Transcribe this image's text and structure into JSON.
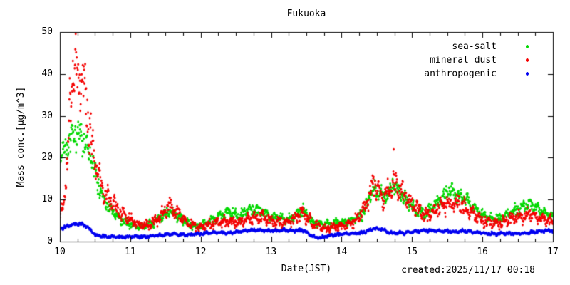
{
  "window": {
    "background": "#ffffff"
  },
  "chart_data": {
    "type": "scatter",
    "title": "Fukuoka",
    "xlabel": "Date(JST)",
    "ylabel": "Mass conc.[μg/m^3]",
    "created": "created:2025/11/17 00:18",
    "grid": false,
    "legend_position": "top-right-inside",
    "x_axis": {
      "min": 10,
      "max": 17,
      "ticks": [
        10,
        11,
        12,
        13,
        14,
        15,
        16,
        17
      ],
      "minor_step": 0.25
    },
    "y_axis": {
      "min": 0,
      "max": 50,
      "ticks": [
        0,
        10,
        20,
        30,
        40,
        50
      ]
    },
    "sample_interval_days": 0.005,
    "series": [
      {
        "name": "sea-salt",
        "color": "#00d800",
        "marker": "filled-circle",
        "spread_rel": 0.2,
        "spread_abs": 0.6,
        "trend": [
          [
            10.0,
            20
          ],
          [
            10.05,
            22
          ],
          [
            10.15,
            24.5
          ],
          [
            10.25,
            25.5
          ],
          [
            10.3,
            25.5
          ],
          [
            10.35,
            24
          ],
          [
            10.45,
            20
          ],
          [
            10.5,
            16
          ],
          [
            10.6,
            11
          ],
          [
            10.7,
            8
          ],
          [
            10.8,
            6
          ],
          [
            10.95,
            4.5
          ],
          [
            11.1,
            3.5
          ],
          [
            11.3,
            4
          ],
          [
            11.45,
            6
          ],
          [
            11.55,
            7
          ],
          [
            11.65,
            6.5
          ],
          [
            11.8,
            4.5
          ],
          [
            11.95,
            3.5
          ],
          [
            12.1,
            4.5
          ],
          [
            12.25,
            6
          ],
          [
            12.4,
            7
          ],
          [
            12.55,
            6
          ],
          [
            12.7,
            7.5
          ],
          [
            12.85,
            7.5
          ],
          [
            13.0,
            6
          ],
          [
            13.15,
            5.5
          ],
          [
            13.3,
            5.5
          ],
          [
            13.45,
            7.5
          ],
          [
            13.6,
            4.5
          ],
          [
            13.75,
            4
          ],
          [
            13.95,
            4.5
          ],
          [
            14.15,
            5
          ],
          [
            14.3,
            6.5
          ],
          [
            14.45,
            13
          ],
          [
            14.6,
            10.5
          ],
          [
            14.75,
            13.5
          ],
          [
            14.9,
            10
          ],
          [
            15.05,
            7.5
          ],
          [
            15.2,
            6.5
          ],
          [
            15.35,
            9
          ],
          [
            15.5,
            12
          ],
          [
            15.65,
            11.5
          ],
          [
            15.8,
            9.5
          ],
          [
            15.95,
            7
          ],
          [
            16.1,
            5.5
          ],
          [
            16.25,
            5.5
          ],
          [
            16.4,
            7
          ],
          [
            16.55,
            8
          ],
          [
            16.7,
            9
          ],
          [
            16.85,
            7
          ],
          [
            17.0,
            6
          ]
        ]
      },
      {
        "name": "mineral dust",
        "color": "#f40000",
        "marker": "filled-circle",
        "spread_rel": 0.3,
        "spread_abs": 0.6,
        "trend": [
          [
            10.0,
            6
          ],
          [
            10.05,
            9
          ],
          [
            10.1,
            18
          ],
          [
            10.15,
            33
          ],
          [
            10.2,
            42
          ],
          [
            10.25,
            42
          ],
          [
            10.3,
            40
          ],
          [
            10.35,
            37
          ],
          [
            10.4,
            30
          ],
          [
            10.45,
            24
          ],
          [
            10.5,
            19
          ],
          [
            10.6,
            13
          ],
          [
            10.7,
            10
          ],
          [
            10.8,
            8
          ],
          [
            10.9,
            6.5
          ],
          [
            11.0,
            5
          ],
          [
            11.15,
            3.8
          ],
          [
            11.3,
            4.2
          ],
          [
            11.45,
            6.5
          ],
          [
            11.55,
            8.5
          ],
          [
            11.65,
            7
          ],
          [
            11.8,
            4.5
          ],
          [
            11.95,
            3.5
          ],
          [
            12.1,
            3.8
          ],
          [
            12.25,
            4.5
          ],
          [
            12.4,
            5
          ],
          [
            12.55,
            4.5
          ],
          [
            12.7,
            5.5
          ],
          [
            12.85,
            6
          ],
          [
            13.0,
            5
          ],
          [
            13.15,
            4.5
          ],
          [
            13.3,
            5
          ],
          [
            13.45,
            7
          ],
          [
            13.6,
            4
          ],
          [
            13.75,
            3.2
          ],
          [
            13.9,
            3.5
          ],
          [
            14.05,
            3.8
          ],
          [
            14.2,
            5
          ],
          [
            14.35,
            9
          ],
          [
            14.45,
            13.5
          ],
          [
            14.6,
            10.5
          ],
          [
            14.75,
            14
          ],
          [
            14.9,
            11
          ],
          [
            15.05,
            8
          ],
          [
            15.2,
            6
          ],
          [
            15.35,
            7.5
          ],
          [
            15.5,
            9
          ],
          [
            15.65,
            9.5
          ],
          [
            15.8,
            7.5
          ],
          [
            15.95,
            5.5
          ],
          [
            16.1,
            4.5
          ],
          [
            16.25,
            4.2
          ],
          [
            16.4,
            5.5
          ],
          [
            16.55,
            6
          ],
          [
            16.7,
            6.5
          ],
          [
            16.85,
            5.5
          ],
          [
            17.0,
            4.8
          ]
        ],
        "outliers": [
          [
            14.74,
            22
          ]
        ]
      },
      {
        "name": "anthropogenic",
        "color": "#0000f0",
        "marker": "filled-circle",
        "spread_rel": 0,
        "spread_abs": 0.55,
        "trend": [
          [
            10.0,
            3
          ],
          [
            10.1,
            3.6
          ],
          [
            10.2,
            4.1
          ],
          [
            10.3,
            4.2
          ],
          [
            10.4,
            3.4
          ],
          [
            10.5,
            1.6
          ],
          [
            10.6,
            1.3
          ],
          [
            10.75,
            1.2
          ],
          [
            10.9,
            1.0
          ],
          [
            11.05,
            1.2
          ],
          [
            11.2,
            1.1
          ],
          [
            11.35,
            1.4
          ],
          [
            11.5,
            1.7
          ],
          [
            11.65,
            1.8
          ],
          [
            11.8,
            1.6
          ],
          [
            11.95,
            1.8
          ],
          [
            12.1,
            2.0
          ],
          [
            12.25,
            2.2
          ],
          [
            12.4,
            2.0
          ],
          [
            12.55,
            2.4
          ],
          [
            12.7,
            2.7
          ],
          [
            12.85,
            2.7
          ],
          [
            13.0,
            2.5
          ],
          [
            13.15,
            2.7
          ],
          [
            13.3,
            2.6
          ],
          [
            13.45,
            2.7
          ],
          [
            13.6,
            1.2
          ],
          [
            13.7,
            0.9
          ],
          [
            13.85,
            1.5
          ],
          [
            14.0,
            1.8
          ],
          [
            14.15,
            1.9
          ],
          [
            14.3,
            2.1
          ],
          [
            14.45,
            3.1
          ],
          [
            14.55,
            3.0
          ],
          [
            14.7,
            2.1
          ],
          [
            14.85,
            2.0
          ],
          [
            15.0,
            2.3
          ],
          [
            15.15,
            2.6
          ],
          [
            15.3,
            2.6
          ],
          [
            15.45,
            2.5
          ],
          [
            15.6,
            2.3
          ],
          [
            15.75,
            2.5
          ],
          [
            15.9,
            2.2
          ],
          [
            16.05,
            2.0
          ],
          [
            16.2,
            1.8
          ],
          [
            16.35,
            2.0
          ],
          [
            16.5,
            1.9
          ],
          [
            16.65,
            2.1
          ],
          [
            16.8,
            2.4
          ],
          [
            16.95,
            2.6
          ],
          [
            17.0,
            2.5
          ]
        ]
      }
    ]
  }
}
